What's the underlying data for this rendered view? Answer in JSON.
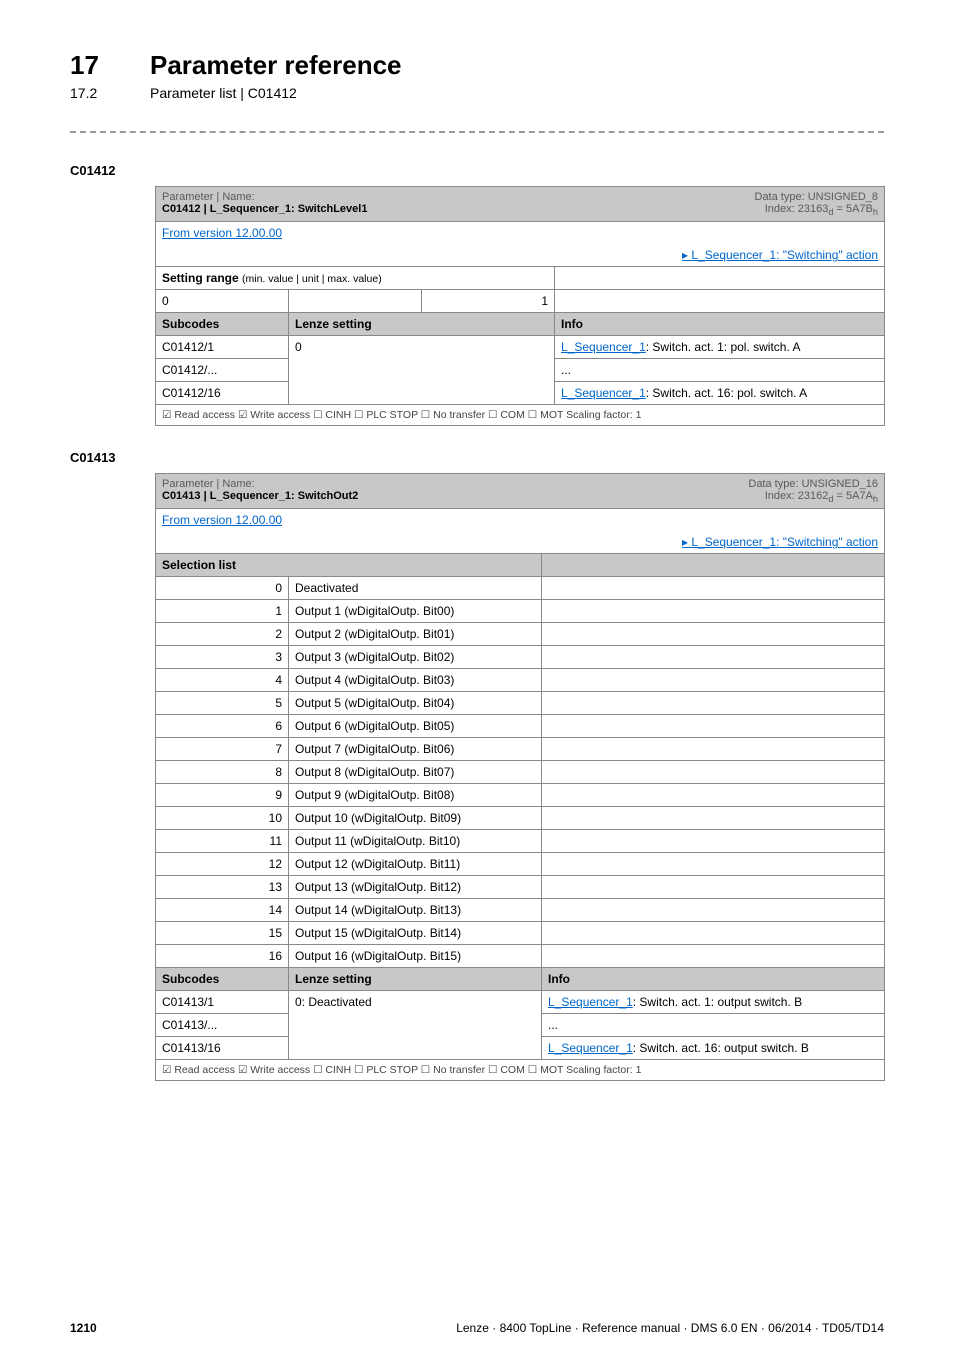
{
  "header": {
    "chapter_num": "17",
    "chapter_title": "Parameter reference",
    "section_num": "17.2",
    "section_title": "Parameter list | C01412"
  },
  "c01412": {
    "code": "C01412",
    "param_label": "Parameter | Name:",
    "param_name": "C01412 | L_Sequencer_1: SwitchLevel1",
    "datatype_line1": "Data type: UNSIGNED_8",
    "datatype_line2": "Index: 23163",
    "datatype_sub": "d",
    "datatype_eq": " = 5A7B",
    "datatype_sub2": "h",
    "version": "From version 12.00.00",
    "action_link": "L_Sequencer_1: \"Switching\" action",
    "setting_range": "Setting range (min. value | unit | max. value)",
    "min": "0",
    "max": "1",
    "subcodes": "Subcodes",
    "lenze_setting": "Lenze setting",
    "info": "Info",
    "row1_code": "C01412/1",
    "row1_val": "0",
    "row1_info_prefix": "L_Sequencer_1",
    "row1_info_rest": ": Switch. act. 1: pol. switch. A",
    "row2_code": "C01412/...",
    "row2_info": "...",
    "row3_code": "C01412/16",
    "row3_info_prefix": "L_Sequencer_1",
    "row3_info_rest": ": Switch. act. 16: pol. switch. A",
    "access": "☑ Read access  ☑ Write access  ☐ CINH  ☐ PLC STOP  ☐ No transfer  ☐ COM  ☐ MOT    Scaling factor: 1"
  },
  "c01413": {
    "code": "C01413",
    "param_label": "Parameter | Name:",
    "param_name": "C01413 | L_Sequencer_1: SwitchOut2",
    "datatype_line1": "Data type: UNSIGNED_16",
    "datatype_line2": "Index: 23162",
    "datatype_sub": "d",
    "datatype_eq": " = 5A7A",
    "datatype_sub2": "h",
    "version": "From version 12.00.00",
    "action_link": "L_Sequencer_1: \"Switching\" action",
    "selection_list": "Selection list",
    "options": [
      {
        "n": "0",
        "label": "Deactivated"
      },
      {
        "n": "1",
        "label": "Output 1 (wDigitalOutp. Bit00)"
      },
      {
        "n": "2",
        "label": "Output 2 (wDigitalOutp. Bit01)"
      },
      {
        "n": "3",
        "label": "Output 3 (wDigitalOutp. Bit02)"
      },
      {
        "n": "4",
        "label": "Output 4 (wDigitalOutp. Bit03)"
      },
      {
        "n": "5",
        "label": "Output 5 (wDigitalOutp. Bit04)"
      },
      {
        "n": "6",
        "label": "Output 6 (wDigitalOutp. Bit05)"
      },
      {
        "n": "7",
        "label": "Output 7 (wDigitalOutp. Bit06)"
      },
      {
        "n": "8",
        "label": "Output 8 (wDigitalOutp. Bit07)"
      },
      {
        "n": "9",
        "label": "Output 9 (wDigitalOutp. Bit08)"
      },
      {
        "n": "10",
        "label": "Output 10 (wDigitalOutp. Bit09)"
      },
      {
        "n": "11",
        "label": "Output 11 (wDigitalOutp. Bit10)"
      },
      {
        "n": "12",
        "label": "Output 12 (wDigitalOutp. Bit11)"
      },
      {
        "n": "13",
        "label": "Output 13 (wDigitalOutp. Bit12)"
      },
      {
        "n": "14",
        "label": "Output 14 (wDigitalOutp. Bit13)"
      },
      {
        "n": "15",
        "label": "Output 15 (wDigitalOutp. Bit14)"
      },
      {
        "n": "16",
        "label": "Output 16 (wDigitalOutp. Bit15)"
      }
    ],
    "subcodes": "Subcodes",
    "lenze_setting": "Lenze setting",
    "info": "Info",
    "row1_code": "C01413/1",
    "row1_val": "0: Deactivated",
    "row1_info_prefix": "L_Sequencer_1",
    "row1_info_rest": ": Switch. act. 1: output switch. B",
    "row2_code": "C01413/...",
    "row2_info": "...",
    "row3_code": "C01413/16",
    "row3_info_prefix": "L_Sequencer_1",
    "row3_info_rest": ": Switch. act. 16: output switch. B",
    "access": "☑ Read access  ☑ Write access  ☐ CINH  ☐ PLC STOP  ☐ No transfer  ☐ COM  ☐ MOT    Scaling factor: 1"
  },
  "footer": {
    "page": "1210",
    "right": "Lenze · 8400 TopLine · Reference manual · DMS 6.0 EN · 06/2014 · TD05/TD14"
  }
}
